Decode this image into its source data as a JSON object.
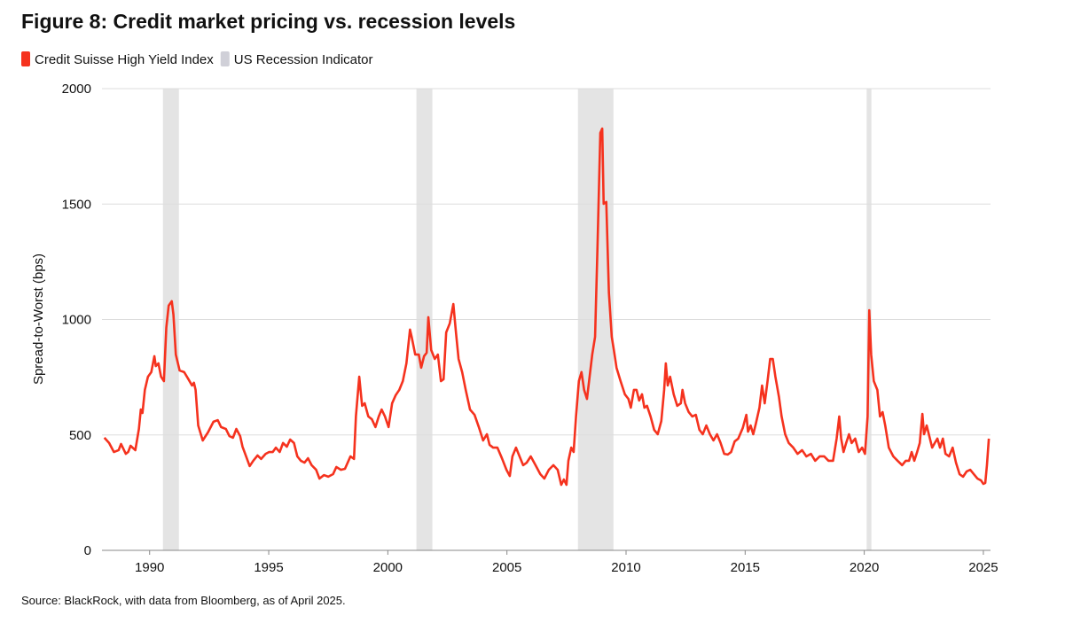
{
  "chart_data": {
    "type": "line",
    "title": "Figure 8: Credit market pricing vs. recession levels",
    "y_label": "Spread-to-Worst (bps)",
    "source": "Source: BlackRock, with data from Bloomberg, as of April 2025.",
    "xlim": [
      1988,
      2025.3
    ],
    "xticks": [
      1990,
      1995,
      2000,
      2005,
      2010,
      2015,
      2020,
      2025
    ],
    "ylim": [
      0,
      2000
    ],
    "yticks": [
      0,
      500,
      1000,
      1500,
      2000
    ],
    "grid": true,
    "shaded_periods": {
      "name": "US Recession Indicator",
      "color": "#e4e4e4",
      "legend_color": "#d0d0d8",
      "ranges": [
        [
          1990.56,
          1991.23
        ],
        [
          2001.2,
          2001.87
        ],
        [
          2007.98,
          2009.47
        ],
        [
          2020.1,
          2020.3
        ]
      ]
    },
    "x": [
      1988.1,
      1988.3,
      1988.5,
      1988.7,
      1988.8,
      1989.0,
      1989.1,
      1989.2,
      1989.4,
      1989.55,
      1989.63,
      1989.7,
      1989.8,
      1989.93,
      1990.07,
      1990.2,
      1990.26,
      1990.37,
      1990.48,
      1990.6,
      1990.7,
      1990.8,
      1990.93,
      1991.0,
      1991.1,
      1991.26,
      1991.45,
      1991.63,
      1991.78,
      1991.86,
      1991.93,
      1992.04,
      1992.23,
      1992.45,
      1992.68,
      1992.86,
      1993.0,
      1993.2,
      1993.35,
      1993.5,
      1993.64,
      1993.8,
      1993.9,
      1994.05,
      1994.2,
      1994.35,
      1994.53,
      1994.68,
      1994.87,
      1995.02,
      1995.17,
      1995.3,
      1995.46,
      1995.6,
      1995.76,
      1995.9,
      1996.06,
      1996.2,
      1996.35,
      1996.5,
      1996.65,
      1996.8,
      1996.99,
      1997.13,
      1997.32,
      1997.5,
      1997.7,
      1997.84,
      1998.03,
      1998.2,
      1998.43,
      1998.58,
      1998.66,
      1998.8,
      1998.92,
      1999.03,
      1999.18,
      1999.33,
      1999.48,
      1999.62,
      1999.74,
      1999.88,
      2000.03,
      2000.18,
      2000.33,
      2000.48,
      2000.63,
      2000.78,
      2000.93,
      2001.0,
      2001.15,
      2001.3,
      2001.4,
      2001.52,
      2001.63,
      2001.7,
      2001.82,
      2001.97,
      2002.1,
      2002.23,
      2002.34,
      2002.45,
      2002.6,
      2002.75,
      2002.86,
      2002.97,
      2003.12,
      2003.27,
      2003.45,
      2003.64,
      2003.82,
      2004.0,
      2004.16,
      2004.27,
      2004.42,
      2004.6,
      2004.79,
      2004.98,
      2005.12,
      2005.23,
      2005.38,
      2005.53,
      2005.68,
      2005.83,
      2006.0,
      2006.2,
      2006.4,
      2006.57,
      2006.76,
      2006.95,
      2007.13,
      2007.28,
      2007.39,
      2007.5,
      2007.58,
      2007.7,
      2007.8,
      2007.9,
      2008.02,
      2008.13,
      2008.24,
      2008.36,
      2008.47,
      2008.58,
      2008.7,
      2008.8,
      2008.92,
      2009.0,
      2009.06,
      2009.17,
      2009.28,
      2009.4,
      2009.5,
      2009.6,
      2009.77,
      2009.95,
      2010.1,
      2010.2,
      2010.33,
      2010.44,
      2010.55,
      2010.67,
      2010.77,
      2010.88,
      2011.03,
      2011.18,
      2011.33,
      2011.48,
      2011.6,
      2011.67,
      2011.75,
      2011.85,
      2012.0,
      2012.15,
      2012.3,
      2012.37,
      2012.48,
      2012.63,
      2012.78,
      2012.93,
      2013.08,
      2013.22,
      2013.37,
      2013.52,
      2013.67,
      2013.82,
      2013.97,
      2014.12,
      2014.27,
      2014.41,
      2014.56,
      2014.71,
      2014.9,
      2015.05,
      2015.12,
      2015.23,
      2015.34,
      2015.45,
      2015.6,
      2015.71,
      2015.82,
      2015.94,
      2016.05,
      2016.16,
      2016.27,
      2016.42,
      2016.53,
      2016.68,
      2016.83,
      2017.02,
      2017.2,
      2017.39,
      2017.57,
      2017.76,
      2017.94,
      2018.13,
      2018.32,
      2018.5,
      2018.69,
      2018.84,
      2018.95,
      2019.03,
      2019.13,
      2019.24,
      2019.36,
      2019.47,
      2019.62,
      2019.77,
      2019.91,
      2020.03,
      2020.14,
      2020.21,
      2020.29,
      2020.4,
      2020.55,
      2020.66,
      2020.77,
      2020.88,
      2021.03,
      2021.22,
      2021.4,
      2021.59,
      2021.74,
      2021.88,
      2021.99,
      2022.1,
      2022.22,
      2022.33,
      2022.44,
      2022.51,
      2022.62,
      2022.73,
      2022.85,
      2022.96,
      2023.07,
      2023.18,
      2023.3,
      2023.41,
      2023.56,
      2023.71,
      2023.85,
      2024.0,
      2024.15,
      2024.3,
      2024.45,
      2024.6,
      2024.75,
      2024.9,
      2025.0,
      2025.08,
      2025.15,
      2025.23
    ],
    "series": [
      {
        "name": "Credit Suisse High Yield Index",
        "color": "#f5321e",
        "values": [
          488,
          465,
          426,
          434,
          461,
          418,
          426,
          453,
          434,
          526,
          610,
          595,
          695,
          752,
          772,
          841,
          798,
          810,
          752,
          733,
          964,
          1060,
          1079,
          1021,
          848,
          779,
          772,
          741,
          714,
          726,
          695,
          541,
          476,
          511,
          557,
          564,
          534,
          526,
          495,
          488,
          526,
          495,
          449,
          407,
          365,
          388,
          411,
          396,
          418,
          426,
          426,
          445,
          426,
          465,
          449,
          480,
          465,
          407,
          388,
          380,
          399,
          369,
          349,
          311,
          326,
          319,
          330,
          361,
          349,
          353,
          407,
          396,
          580,
          752,
          626,
          637,
          580,
          568,
          534,
          580,
          610,
          580,
          534,
          637,
          672,
          695,
          733,
          810,
          956,
          925,
          848,
          848,
          791,
          841,
          856,
          1010,
          868,
          829,
          848,
          733,
          741,
          944,
          983,
          1067,
          944,
          829,
          772,
          695,
          610,
          587,
          534,
          476,
          503,
          457,
          445,
          445,
          399,
          349,
          322,
          407,
          445,
          407,
          369,
          380,
          407,
          369,
          330,
          311,
          349,
          369,
          349,
          284,
          307,
          284,
          388,
          445,
          426,
          580,
          733,
          772,
          695,
          656,
          752,
          848,
          925,
          1309,
          1808,
          1827,
          1501,
          1509,
          1117,
          925,
          860,
          791,
          733,
          676,
          656,
          618,
          695,
          695,
          649,
          676,
          618,
          626,
          580,
          522,
          503,
          560,
          695,
          810,
          714,
          752,
          676,
          626,
          637,
          695,
          637,
          599,
          580,
          587,
          522,
          503,
          541,
          503,
          476,
          503,
          465,
          418,
          415,
          426,
          472,
          484,
          530,
          587,
          514,
          541,
          503,
          549,
          618,
          714,
          637,
          733,
          829,
          829,
          752,
          664,
          580,
          503,
          465,
          445,
          418,
          434,
          407,
          418,
          388,
          407,
          407,
          388,
          388,
          484,
          580,
          484,
          426,
          465,
          503,
          465,
          484,
          426,
          445,
          418,
          580,
          1040,
          848,
          733,
          695,
          580,
          599,
          541,
          445,
          407,
          388,
          369,
          388,
          388,
          426,
          388,
          426,
          465,
          591,
          503,
          541,
          495,
          445,
          465,
          484,
          445,
          484,
          418,
          407,
          445,
          380,
          330,
          319,
          342,
          349,
          330,
          311,
          303,
          288,
          292,
          369,
          484
        ]
      }
    ]
  }
}
